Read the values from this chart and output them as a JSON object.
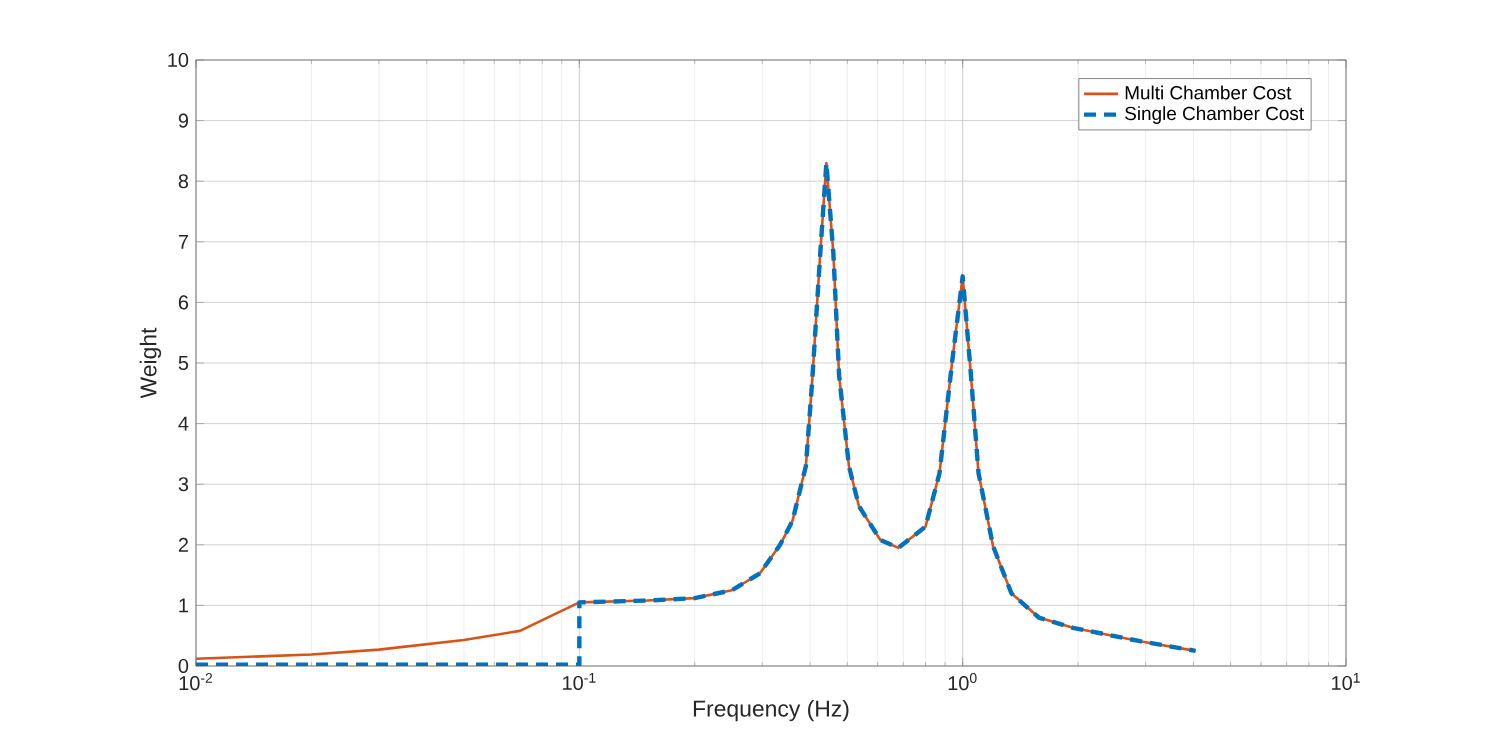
{
  "chart_data": {
    "type": "line",
    "xlabel": "Frequency (Hz)",
    "ylabel": "Weight",
    "log": "x",
    "grid": true,
    "legend": "top right",
    "xlim": [
      0.01,
      10
    ],
    "xticks": [
      {
        "value": 0.01,
        "label": "10$^{-2}$"
      },
      {
        "value": 0.1,
        "label": "10$^{-1}$"
      },
      {
        "value": 1,
        "label": "10$^{0}$"
      },
      {
        "value": 10,
        "label": "10$^{1}$"
      }
    ],
    "ylim": [
      0,
      10
    ],
    "yticks": [
      0,
      1,
      2,
      3,
      4,
      5,
      6,
      7,
      8,
      9,
      10
    ],
    "series": [
      {
        "name": "Multi Chamber Cost",
        "color": "#d95319",
        "line_style": "solid",
        "x": [
          0.01,
          0.02,
          0.03,
          0.05,
          0.07,
          0.1,
          0.15,
          0.2,
          0.25,
          0.296,
          0.334,
          0.36,
          0.39,
          0.405,
          0.425,
          0.441,
          0.46,
          0.476,
          0.505,
          0.536,
          0.61,
          0.68,
          0.8,
          0.87,
          0.94,
          1.0,
          1.05,
          1.1,
          1.2,
          1.34,
          1.58,
          1.94,
          2.37,
          2.9,
          4.05
        ],
        "values": [
          0.12,
          0.19,
          0.27,
          0.43,
          0.58,
          1.05,
          1.08,
          1.12,
          1.25,
          1.53,
          2.0,
          2.4,
          3.3,
          4.7,
          6.8,
          8.3,
          6.8,
          4.8,
          3.3,
          2.64,
          2.08,
          1.95,
          2.3,
          3.18,
          5.05,
          6.43,
          4.83,
          3.18,
          1.98,
          1.2,
          0.8,
          0.63,
          0.52,
          0.41,
          0.25
        ]
      },
      {
        "name": "Single Chamber Cost",
        "color": "#0072bd",
        "line_style": "dashed",
        "x": [
          0.01,
          0.1,
          0.1,
          0.15,
          0.2,
          0.25,
          0.296,
          0.334,
          0.36,
          0.39,
          0.405,
          0.425,
          0.441,
          0.46,
          0.476,
          0.505,
          0.536,
          0.61,
          0.68,
          0.8,
          0.87,
          0.94,
          1.0,
          1.05,
          1.1,
          1.2,
          1.34,
          1.58,
          1.94,
          2.37,
          2.9,
          4.05
        ],
        "values": [
          0.02,
          0.02,
          1.05,
          1.08,
          1.12,
          1.25,
          1.53,
          2.0,
          2.4,
          3.3,
          4.7,
          6.8,
          8.3,
          6.8,
          4.8,
          3.3,
          2.64,
          2.08,
          1.95,
          2.3,
          3.18,
          5.05,
          6.43,
          4.83,
          3.18,
          1.98,
          1.2,
          0.8,
          0.63,
          0.52,
          0.41,
          0.25
        ]
      }
    ]
  }
}
